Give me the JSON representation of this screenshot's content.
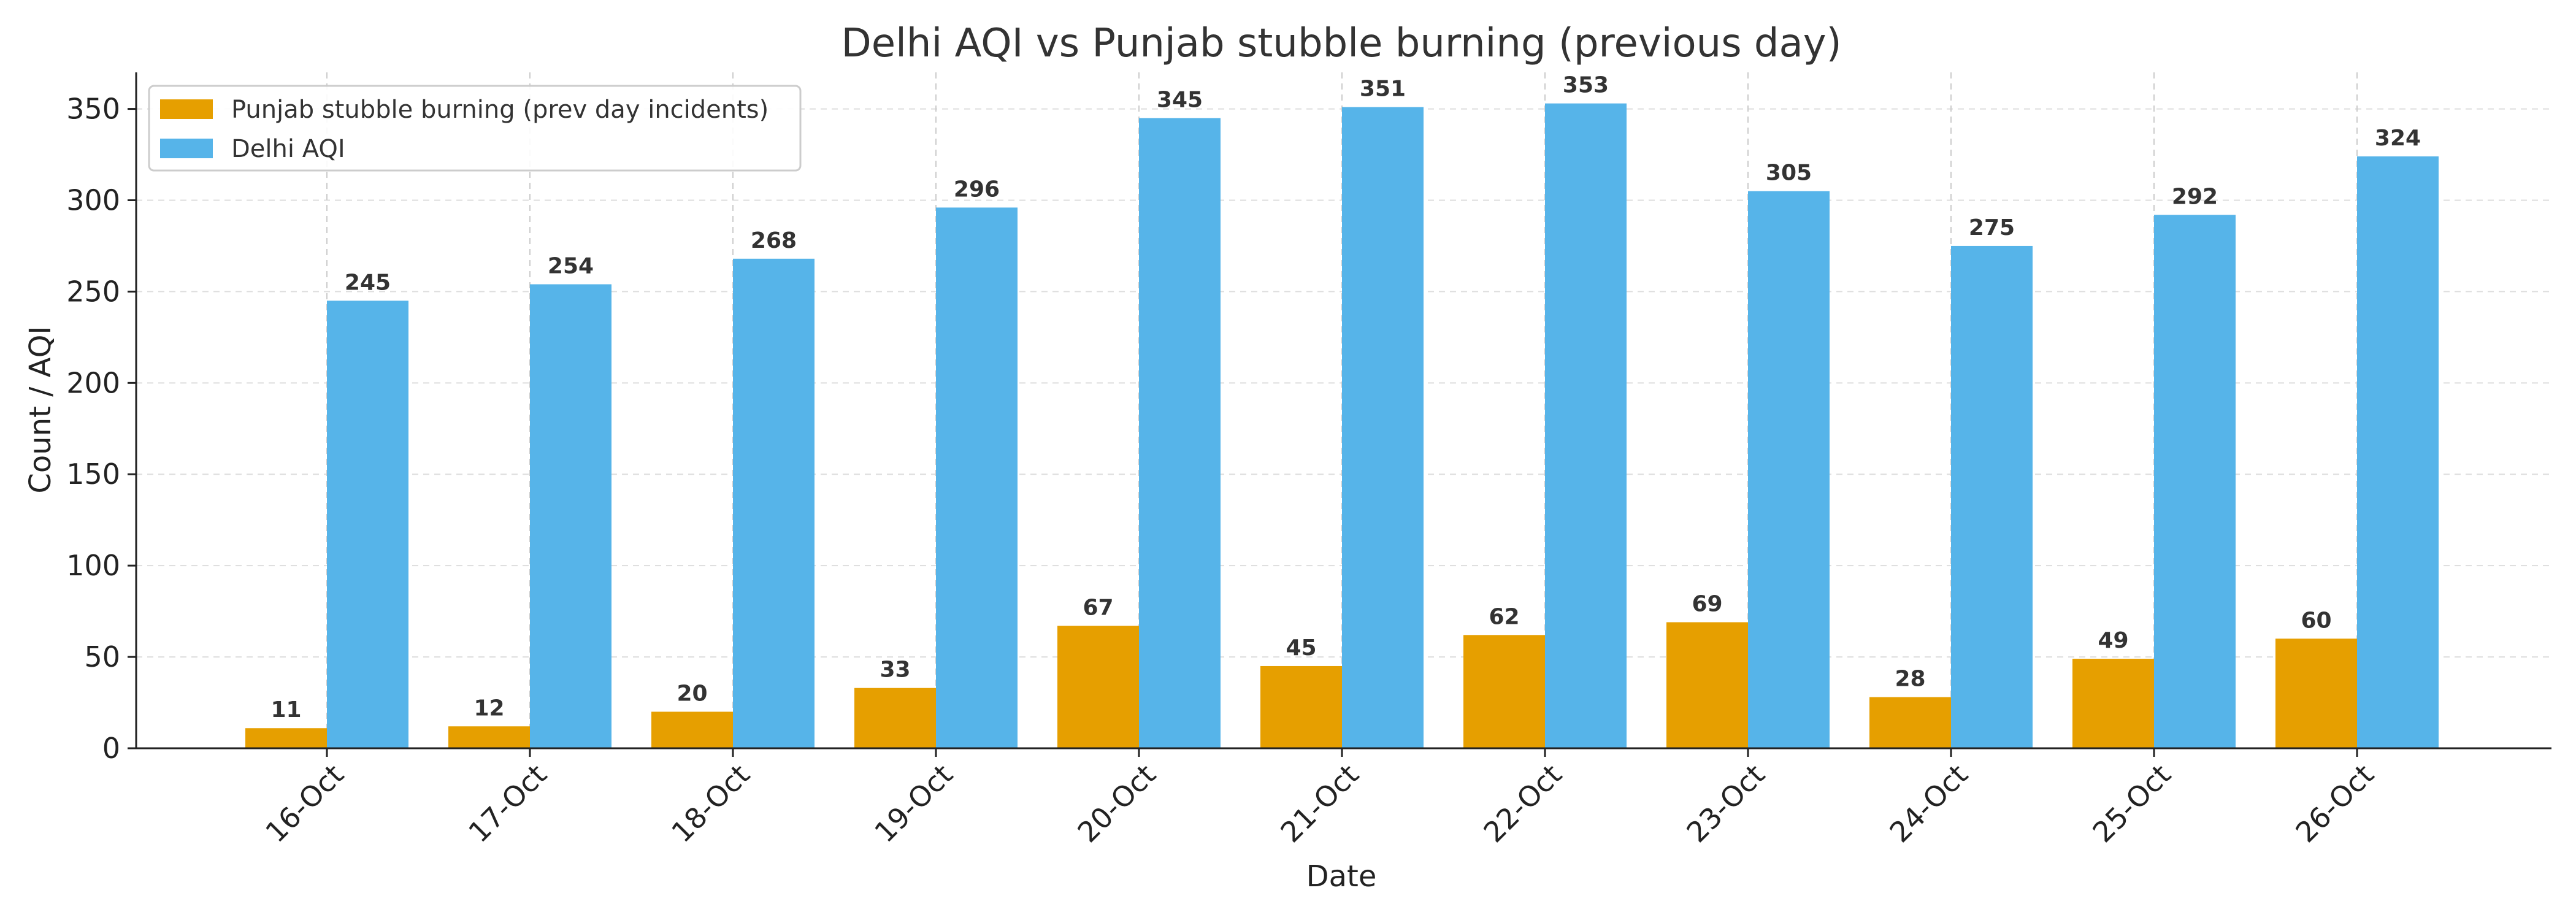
{
  "chart_data": {
    "type": "bar",
    "title": "Delhi AQI vs Punjab stubble burning (previous day)",
    "xlabel": "Date",
    "ylabel": "Count / AQI",
    "categories": [
      "16-Oct",
      "17-Oct",
      "18-Oct",
      "19-Oct",
      "20-Oct",
      "21-Oct",
      "22-Oct",
      "23-Oct",
      "24-Oct",
      "25-Oct",
      "26-Oct"
    ],
    "series": [
      {
        "name": "Punjab stubble burning (prev day incidents)",
        "color": "#E69F00",
        "values": [
          11,
          12,
          20,
          33,
          67,
          45,
          62,
          69,
          28,
          49,
          60
        ]
      },
      {
        "name": "Delhi AQI",
        "color": "#56B4E9",
        "values": [
          245,
          254,
          268,
          296,
          345,
          351,
          353,
          305,
          275,
          292,
          324
        ]
      }
    ],
    "ylim": [
      0,
      370
    ],
    "yticks": [
      0,
      50,
      100,
      150,
      200,
      250,
      300,
      350
    ],
    "grid": true,
    "legend": "top-left",
    "data_labels": true
  }
}
